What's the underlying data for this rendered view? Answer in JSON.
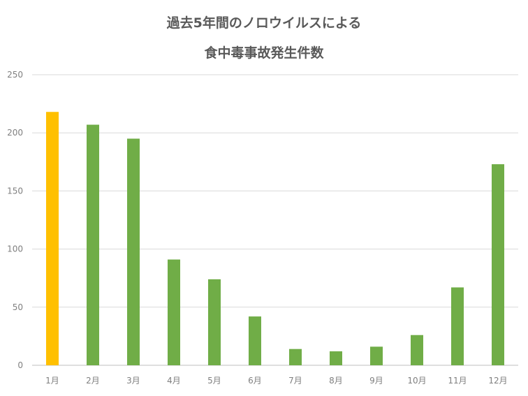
{
  "chart_data": {
    "type": "bar",
    "title_lines": [
      "過去5年間のノロウイルスによる",
      "食中毒事故発生件数"
    ],
    "categories": [
      "1月",
      "2月",
      "3月",
      "4月",
      "5月",
      "6月",
      "7月",
      "8月",
      "9月",
      "10月",
      "11月",
      "12月"
    ],
    "values": [
      218,
      207,
      195,
      91,
      74,
      42,
      14,
      12,
      16,
      26,
      67,
      173
    ],
    "highlight_index": 0,
    "colors": {
      "bar": "#70ad47",
      "highlight": "#ffc000",
      "grid": "#d9d9d9",
      "axis": "#bfbfbf"
    },
    "ylim": [
      0,
      250
    ],
    "yticks": [
      0,
      50,
      100,
      150,
      200,
      250
    ],
    "grid": true,
    "legend": "none"
  }
}
